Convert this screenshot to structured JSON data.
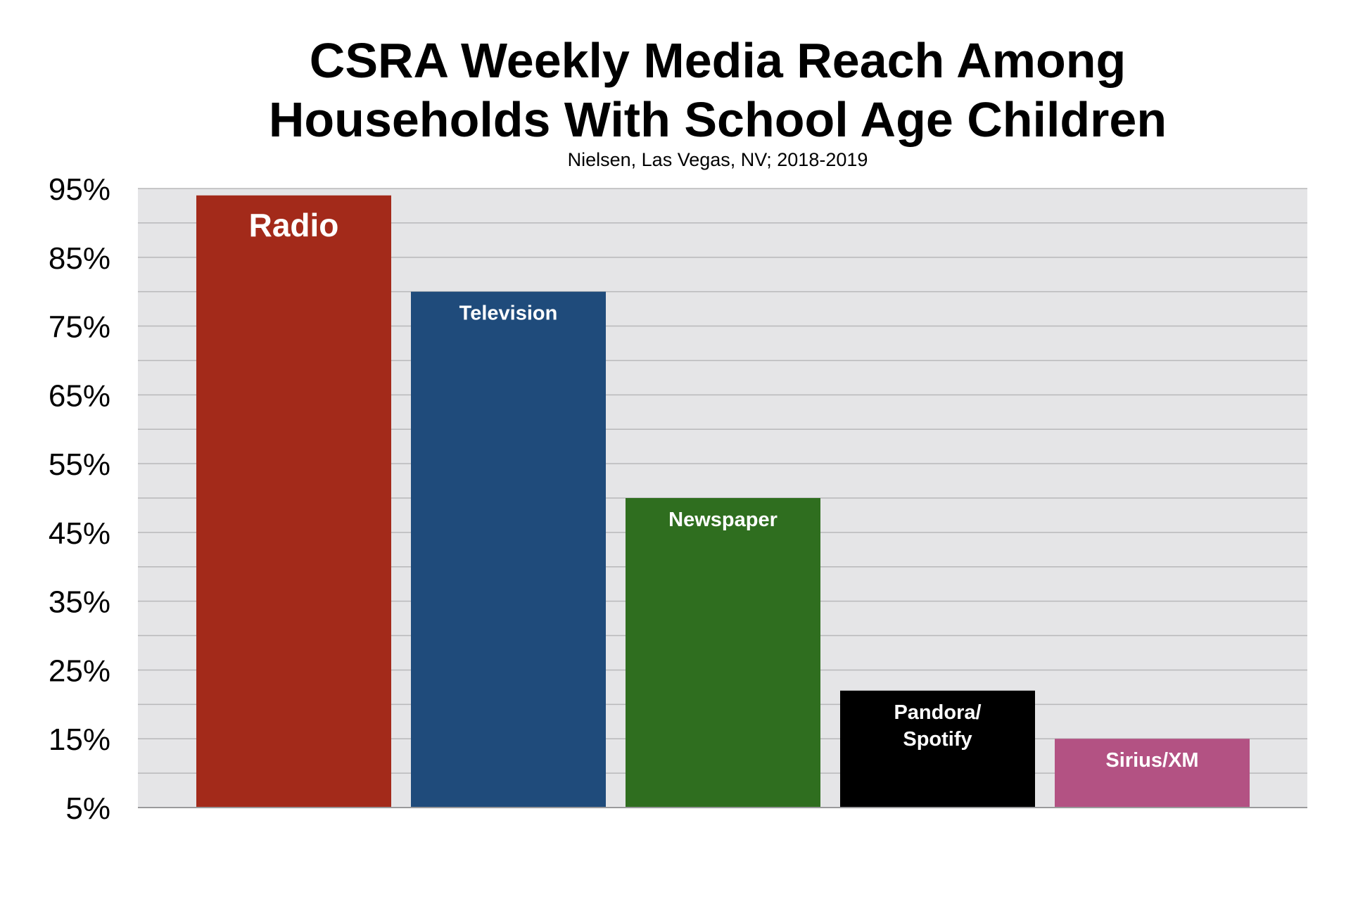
{
  "chart_data": {
    "type": "bar",
    "title_lines": [
      "CSRA Weekly Media Reach Among",
      "Households With School Age Children"
    ],
    "subtitle": "Nielsen, Las Vegas, NV; 2018-2019",
    "xlabel": "",
    "ylabel": "",
    "categories": [
      "Radio",
      "Television",
      "Newspaper",
      "Pandora/ Spotify",
      "Sirius/XM"
    ],
    "label_lines": [
      [
        "Radio"
      ],
      [
        "Television"
      ],
      [
        "Newspaper"
      ],
      [
        "Pandora/",
        "Spotify"
      ],
      [
        "Sirius/XM"
      ]
    ],
    "values": [
      94,
      80,
      50,
      22,
      15
    ],
    "colors": [
      "#A32A1A",
      "#1F4B7B",
      "#2F6E1F",
      "#000000",
      "#B35283"
    ],
    "ylim": [
      5,
      95
    ],
    "ytick_labels": [
      "95%",
      "85%",
      "75%",
      "65%",
      "55%",
      "45%",
      "35%",
      "25%",
      "15%",
      "5%"
    ],
    "ytick_values": [
      95,
      85,
      75,
      65,
      55,
      45,
      35,
      25,
      15,
      5
    ],
    "grid": true,
    "grid_step": 5,
    "background": "#E5E5E7",
    "legend": "none"
  }
}
